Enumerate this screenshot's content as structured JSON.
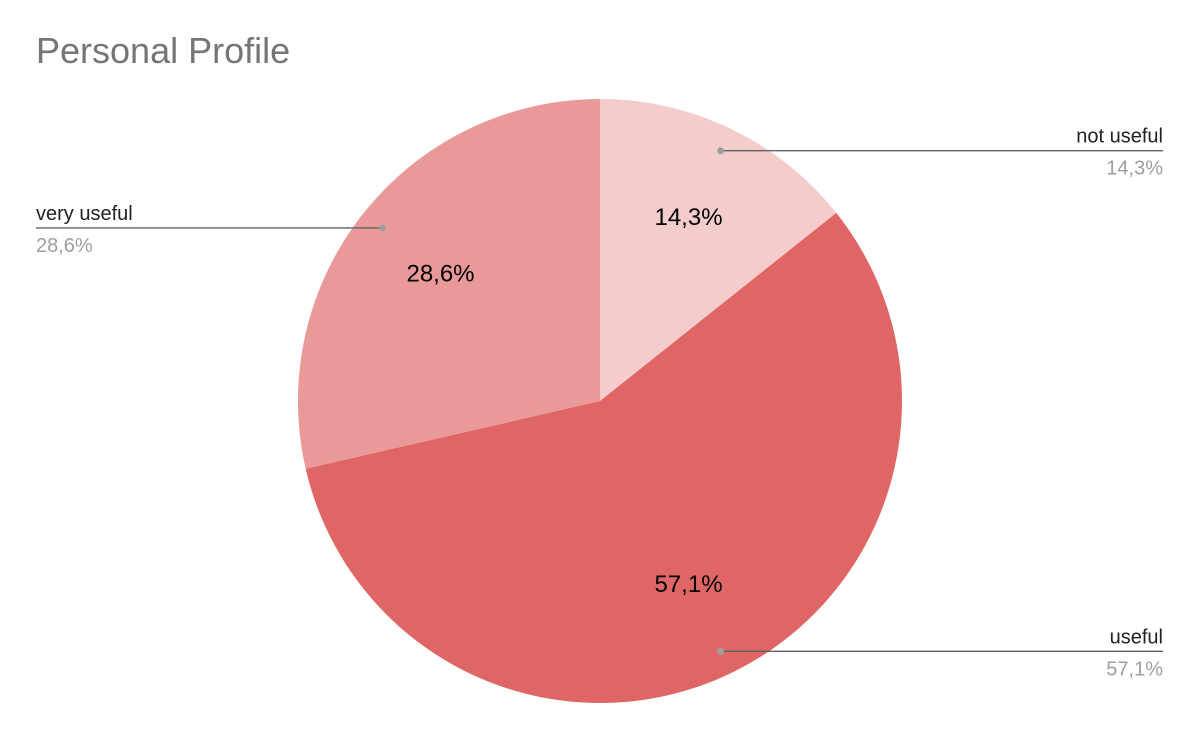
{
  "chart_data": {
    "type": "pie",
    "title": "Personal Profile",
    "start_angle_deg": 0,
    "direction": "clockwise",
    "colors": [
      "#f4cccc",
      "#e06666",
      "#ea9999"
    ],
    "slices": [
      {
        "name": "not useful",
        "value": 14.3,
        "label": "14,3%",
        "legend_value": "14,3%",
        "color": "#f4cccc"
      },
      {
        "name": "useful",
        "value": 57.1,
        "label": "57,1%",
        "legend_value": "57,1%",
        "color": "#e06666"
      },
      {
        "name": "very useful",
        "value": 28.6,
        "label": "28,6%",
        "legend_value": "28,6%",
        "color": "#ea9999"
      }
    ]
  }
}
